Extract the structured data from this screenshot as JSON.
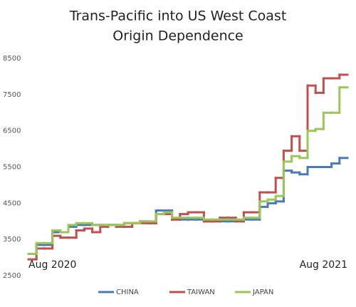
{
  "chart_data": {
    "type": "line",
    "title": [
      "Trans-Pacific into US West Coast",
      "Origin Dependence"
    ],
    "categories": [
      "Aug 2020",
      null,
      null,
      null,
      null,
      null,
      null,
      null,
      null,
      null,
      null,
      null,
      null,
      null,
      null,
      null,
      null,
      null,
      null,
      null,
      null,
      null,
      null,
      null,
      null,
      null,
      null,
      null,
      null,
      null,
      null,
      null,
      null,
      null,
      null,
      null,
      null,
      null,
      null,
      "Aug 2021"
    ],
    "ylim": [
      2500,
      8500
    ],
    "yticks": [
      2500,
      3500,
      4500,
      5500,
      6500,
      7500,
      8500
    ],
    "grid": false,
    "legend": "bottom",
    "series": [
      {
        "name": "CHINA",
        "color": "#4a7ab8",
        "values": [
          3100,
          3350,
          3350,
          3700,
          3700,
          3850,
          3900,
          3900,
          3900,
          3900,
          3900,
          3900,
          3950,
          3950,
          4000,
          3950,
          4300,
          4300,
          4050,
          4050,
          4050,
          4050,
          4000,
          4000,
          4000,
          4000,
          4000,
          4050,
          4050,
          4400,
          4500,
          4550,
          5400,
          5350,
          5300,
          5500,
          5500,
          5500,
          5600,
          5750
        ]
      },
      {
        "name": "TAIWAN",
        "color": "#c0504d",
        "values": [
          2950,
          3250,
          3250,
          3600,
          3550,
          3550,
          3750,
          3800,
          3700,
          3850,
          3900,
          3850,
          3850,
          3950,
          3950,
          3950,
          4200,
          4200,
          4050,
          4200,
          4250,
          4250,
          4000,
          4000,
          4100,
          4100,
          4000,
          4250,
          4250,
          4800,
          4800,
          5200,
          5950,
          6350,
          5950,
          7750,
          7550,
          7950,
          7950,
          8050
        ]
      },
      {
        "name": "JAPAN",
        "color": "#9bc65a",
        "values": [
          3100,
          3400,
          3400,
          3750,
          3700,
          3900,
          3950,
          3950,
          3900,
          3900,
          3900,
          3900,
          3950,
          3950,
          4000,
          4000,
          4200,
          4250,
          4100,
          4100,
          4100,
          4100,
          4050,
          4050,
          4050,
          4050,
          4050,
          4100,
          4100,
          4550,
          4600,
          4700,
          5650,
          5800,
          5750,
          6500,
          6550,
          7000,
          7000,
          7700
        ]
      }
    ]
  }
}
